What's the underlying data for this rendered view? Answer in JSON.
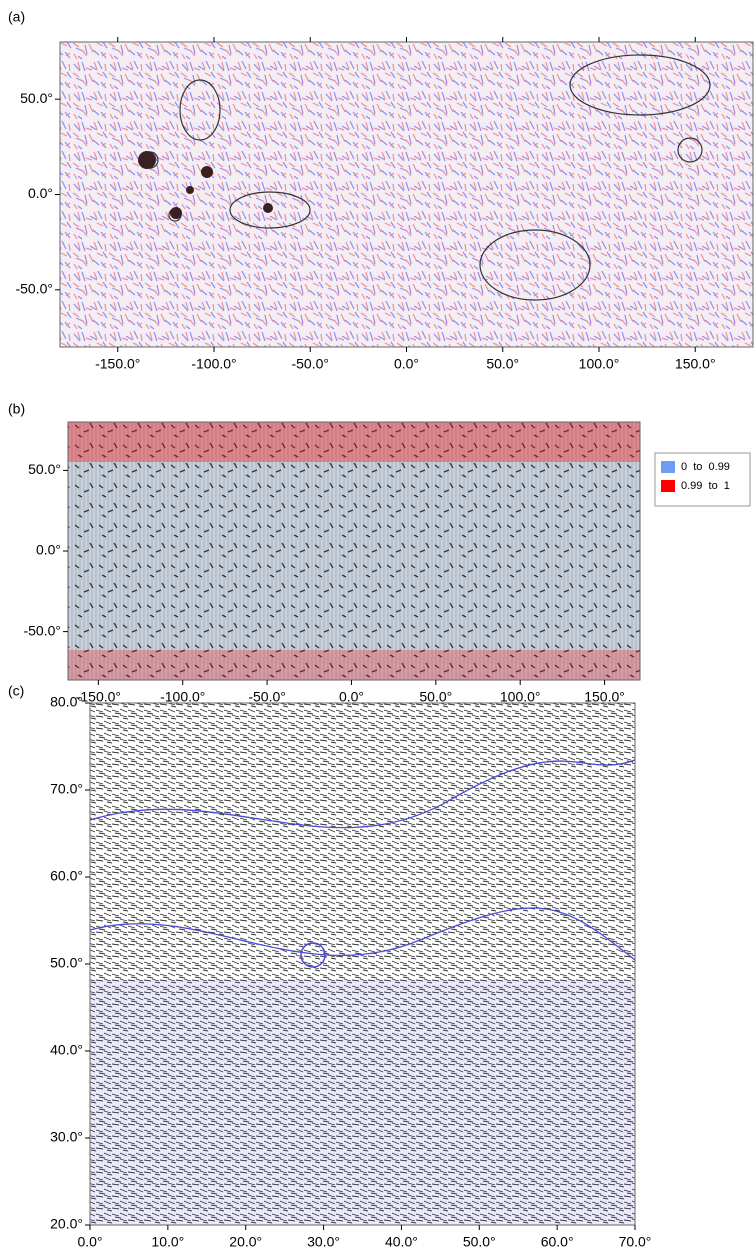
{
  "panels": [
    {
      "label": "(a)",
      "xlim": [
        -180,
        180
      ],
      "ylim": [
        -80,
        80
      ],
      "xticks": [
        {
          "value": -150,
          "label": "-150.0°"
        },
        {
          "value": -100,
          "label": "-100.0°"
        },
        {
          "value": -50,
          "label": "-50.0°"
        },
        {
          "value": 0,
          "label": "0.0°"
        },
        {
          "value": 50,
          "label": "50.0°"
        },
        {
          "value": 100,
          "label": "100.0°"
        },
        {
          "value": 150,
          "label": "150.0°"
        }
      ],
      "yticks": [
        {
          "value": 50,
          "label": "50.0°"
        },
        {
          "value": 0,
          "label": "0.0°"
        },
        {
          "value": -50,
          "label": "-50.0°"
        }
      ]
    },
    {
      "label": "(b)",
      "xlim": [
        -168,
        171
      ],
      "ylim": [
        -80,
        80
      ],
      "xticks": [
        {
          "value": -150,
          "label": "-150.0°"
        },
        {
          "value": -100,
          "label": "-100.0°"
        },
        {
          "value": -50,
          "label": "-50.0°"
        },
        {
          "value": 0,
          "label": "0.0°"
        },
        {
          "value": 50,
          "label": "50.0°"
        },
        {
          "value": 100,
          "label": "100.0°"
        },
        {
          "value": 150,
          "label": "150.0°"
        }
      ],
      "yticks": [
        {
          "value": 50,
          "label": "50.0°"
        },
        {
          "value": 0,
          "label": "0.0°"
        },
        {
          "value": -50,
          "label": "-50.0°"
        }
      ],
      "legend": [
        {
          "label": "0  to  0.99",
          "color": "#6f9cf0"
        },
        {
          "label": "0.99  to  1",
          "color": "#ff0000"
        }
      ]
    },
    {
      "label": "(c)",
      "xlim": [
        0,
        70
      ],
      "ylim": [
        20,
        80
      ],
      "xticks": [
        {
          "value": 0,
          "label": "0.0°"
        },
        {
          "value": 10,
          "label": "10.0°"
        },
        {
          "value": 20,
          "label": "20.0°"
        },
        {
          "value": 30,
          "label": "30.0°"
        },
        {
          "value": 40,
          "label": "40.0°"
        },
        {
          "value": 50,
          "label": "50.0°"
        },
        {
          "value": 60,
          "label": "60.0°"
        },
        {
          "value": 70,
          "label": "70.0°"
        }
      ],
      "yticks": [
        {
          "value": 80,
          "label": "80.0°"
        },
        {
          "value": 70,
          "label": "70.0°"
        },
        {
          "value": 60,
          "label": "60.0°"
        },
        {
          "value": 50,
          "label": "50.0°"
        },
        {
          "value": 40,
          "label": "40.0°"
        },
        {
          "value": 30,
          "label": "30.0°"
        },
        {
          "value": 20,
          "label": "20.0°"
        }
      ]
    }
  ]
}
